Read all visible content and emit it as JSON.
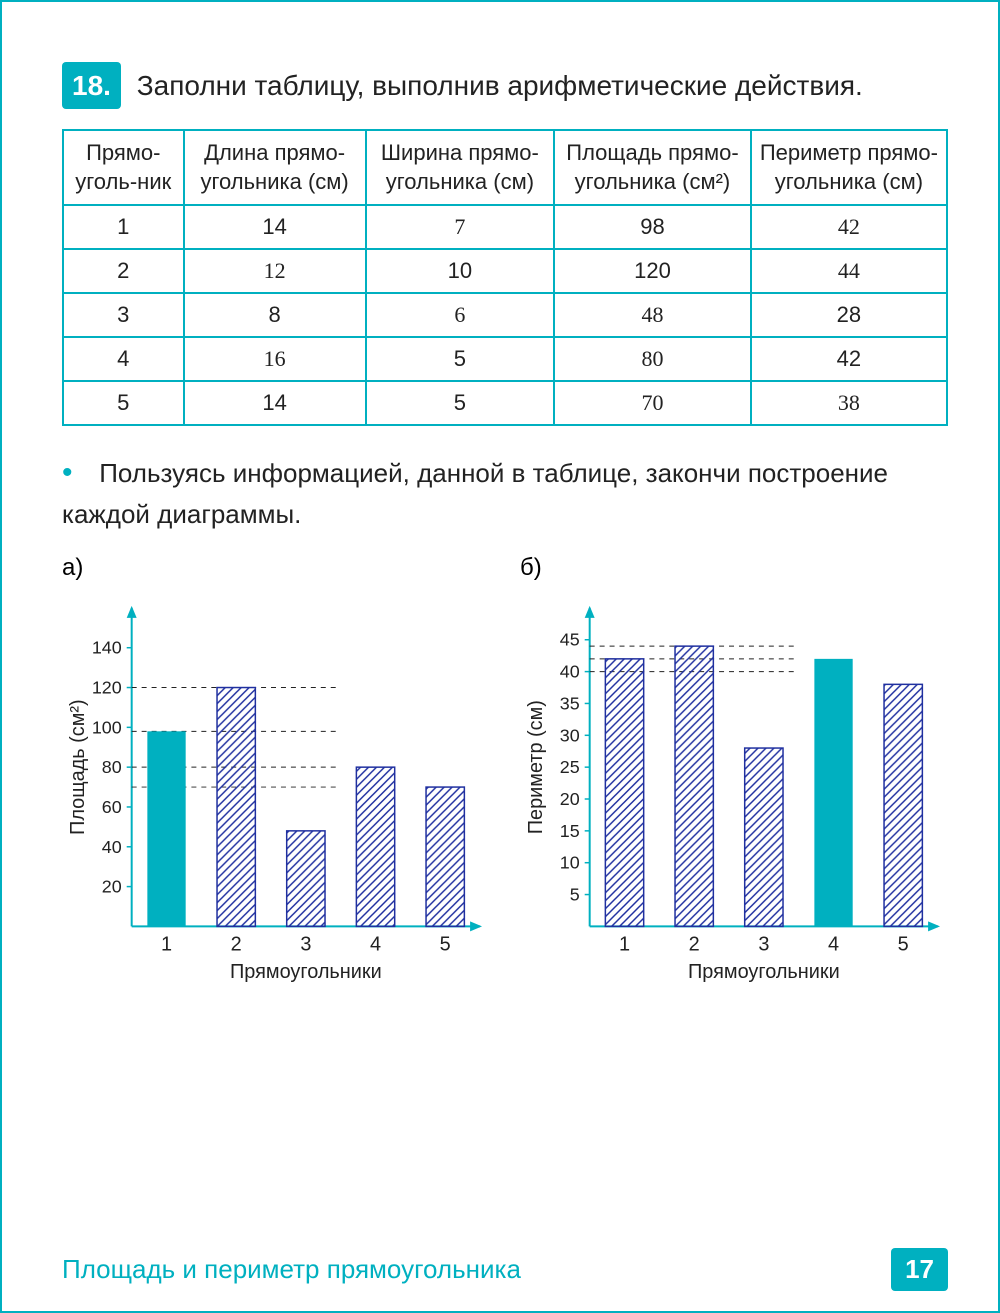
{
  "exercise": {
    "number": "18.",
    "prompt": "Заполни таблицу, выполнив арифметические действия."
  },
  "table": {
    "headers": [
      "Прямо-уголь-ник",
      "Длина прямо-угольника (см)",
      "Ширина прямо-угольника (см)",
      "Площадь прямо-угольника (см²)",
      "Периметр прямо-угольника (см)"
    ],
    "rows": [
      {
        "n": "1",
        "len": "14",
        "len_hw": false,
        "wid": "7",
        "wid_hw": true,
        "area": "98",
        "area_hw": false,
        "per": "42",
        "per_hw": true
      },
      {
        "n": "2",
        "len": "12",
        "len_hw": true,
        "wid": "10",
        "wid_hw": false,
        "area": "120",
        "area_hw": false,
        "per": "44",
        "per_hw": true
      },
      {
        "n": "3",
        "len": "8",
        "len_hw": false,
        "wid": "6",
        "wid_hw": true,
        "area": "48",
        "area_hw": true,
        "per": "28",
        "per_hw": false
      },
      {
        "n": "4",
        "len": "16",
        "len_hw": true,
        "wid": "5",
        "wid_hw": false,
        "area": "80",
        "area_hw": true,
        "per": "42",
        "per_hw": false
      },
      {
        "n": "5",
        "len": "14",
        "len_hw": false,
        "wid": "5",
        "wid_hw": false,
        "area": "70",
        "area_hw": true,
        "per": "38",
        "per_hw": true
      }
    ]
  },
  "sub_prompt": "Пользуясь информацией, данной в таблице, закончи построение каждой диаграммы.",
  "chart_a": {
    "label": "а)",
    "type": "bar",
    "ylabel": "Площадь (см²)",
    "xlabel": "Прямоугольники",
    "categories": [
      "1",
      "2",
      "3",
      "4",
      "5"
    ],
    "values": [
      98,
      120,
      48,
      80,
      70
    ],
    "ylim": [
      0,
      160
    ],
    "yticks": [
      20,
      40,
      60,
      80,
      100,
      120,
      140
    ],
    "printed_bars": [
      1
    ],
    "solid_color": "#00b0c0",
    "hatch_color": "#2030a0",
    "axis_color": "#00b0c0",
    "text_color": "#222222",
    "bar_width": 0.55,
    "guide_dashes": [
      98,
      120,
      80,
      70
    ]
  },
  "chart_b": {
    "label": "б)",
    "type": "bar",
    "ylabel": "Периметр (см)",
    "xlabel": "Прямоугольники",
    "categories": [
      "1",
      "2",
      "3",
      "4",
      "5"
    ],
    "values": [
      42,
      44,
      28,
      42,
      38
    ],
    "ylim": [
      0,
      50
    ],
    "yticks": [
      5,
      10,
      15,
      20,
      25,
      30,
      35,
      40,
      45
    ],
    "printed_bars": [
      4
    ],
    "solid_color": "#00b0c0",
    "hatch_color": "#2030a0",
    "axis_color": "#00b0c0",
    "text_color": "#222222",
    "bar_width": 0.55,
    "guide_dashes": [
      42,
      44,
      40
    ]
  },
  "footer": {
    "title": "Площадь и периметр прямоугольника",
    "page": "17"
  },
  "colors": {
    "teal": "#00b0c0",
    "ink": "#2030a0",
    "black": "#222222",
    "white": "#ffffff"
  }
}
